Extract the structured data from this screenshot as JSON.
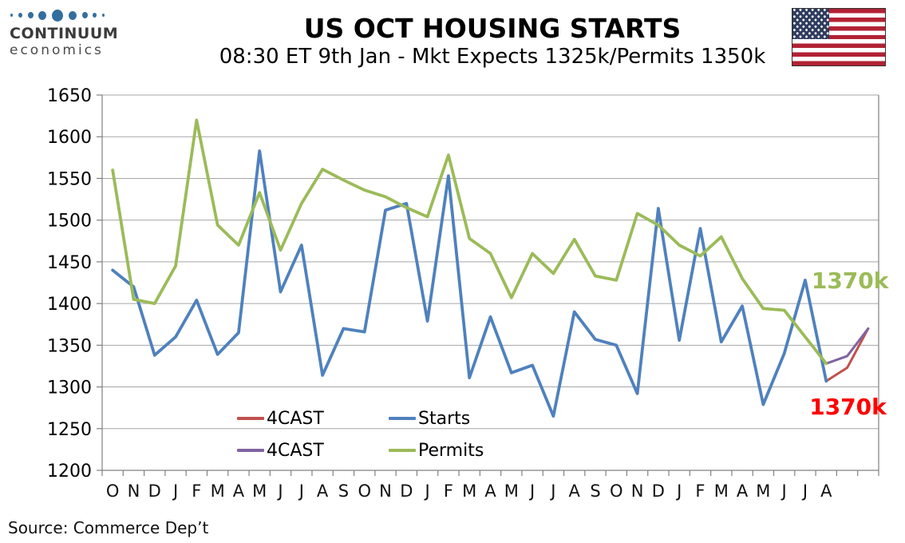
{
  "header": {
    "logo": {
      "brand": "CONTINUUM",
      "sub": "economics"
    },
    "title": "US OCT HOUSING STARTS",
    "subtitle": "08:30 ET 9th Jan - Mkt Expects 1325k/Permits 1350k"
  },
  "chart_data": {
    "type": "line",
    "title": "US OCT HOUSING STARTS",
    "xlabel": "",
    "ylabel": "",
    "ylim": [
      1200,
      1650
    ],
    "y_ticks": [
      1650,
      1600,
      1550,
      1500,
      1450,
      1400,
      1350,
      1300,
      1250,
      1200
    ],
    "grid": true,
    "legend_position": "inside-bottom-center",
    "categories": [
      "O",
      "N",
      "D",
      "J",
      "F",
      "M",
      "A",
      "M",
      "J",
      "J",
      "A",
      "S",
      "O",
      "N",
      "D",
      "J",
      "F",
      "M",
      "A",
      "M",
      "J",
      "J",
      "A",
      "S",
      "O",
      "N",
      "D",
      "J",
      "F",
      "M",
      "A",
      "M",
      "J",
      "J",
      "A",
      "",
      ""
    ],
    "series": [
      {
        "name": "4CAST",
        "color": "#C0504D",
        "width": 3,
        "start_index": 34,
        "values": [
          1307,
          1323,
          1370
        ]
      },
      {
        "name": "Starts",
        "color": "#4F81BD",
        "width": 3.8,
        "start_index": 0,
        "values": [
          1440,
          1420,
          1338,
          1360,
          1404,
          1339,
          1365,
          1583,
          1414,
          1470,
          1314,
          1370,
          1366,
          1512,
          1520,
          1379,
          1553,
          1311,
          1384,
          1317,
          1326,
          1265,
          1390,
          1357,
          1350,
          1292,
          1514,
          1356,
          1490,
          1354,
          1397,
          1279,
          1340,
          1428,
          1307
        ]
      },
      {
        "name": "4CAST",
        "color": "#8064A2",
        "width": 3,
        "start_index": 34,
        "values": [
          1328,
          1337,
          1370
        ]
      },
      {
        "name": "Permits",
        "color": "#9BBB59",
        "width": 3.8,
        "start_index": 0,
        "values": [
          1560,
          1405,
          1400,
          1445,
          1620,
          1494,
          1470,
          1533,
          1464,
          1520,
          1561,
          1548,
          1536,
          1528,
          1515,
          1504,
          1578,
          1478,
          1460,
          1407,
          1460,
          1436,
          1477,
          1433,
          1428,
          1508,
          1494,
          1470,
          1457,
          1480,
          1430,
          1394,
          1392,
          1360,
          1328
        ]
      }
    ]
  },
  "legend": {
    "items": [
      {
        "label": "4CAST",
        "color": "#C0504D"
      },
      {
        "label": "Starts",
        "color": "#4F81BD"
      },
      {
        "label": "4CAST",
        "color": "#8064A2"
      },
      {
        "label": "Permits",
        "color": "#9BBB59"
      }
    ]
  },
  "annotations": [
    {
      "text": "1370k",
      "color": "#9BBB59",
      "x_index": 33.3,
      "y_value": 1427
    },
    {
      "text": "1370k",
      "color": "#FF0000",
      "x_index": 33.2,
      "y_value": 1276
    }
  ],
  "footer": {
    "source": "Source: Commerce Dep’t"
  }
}
